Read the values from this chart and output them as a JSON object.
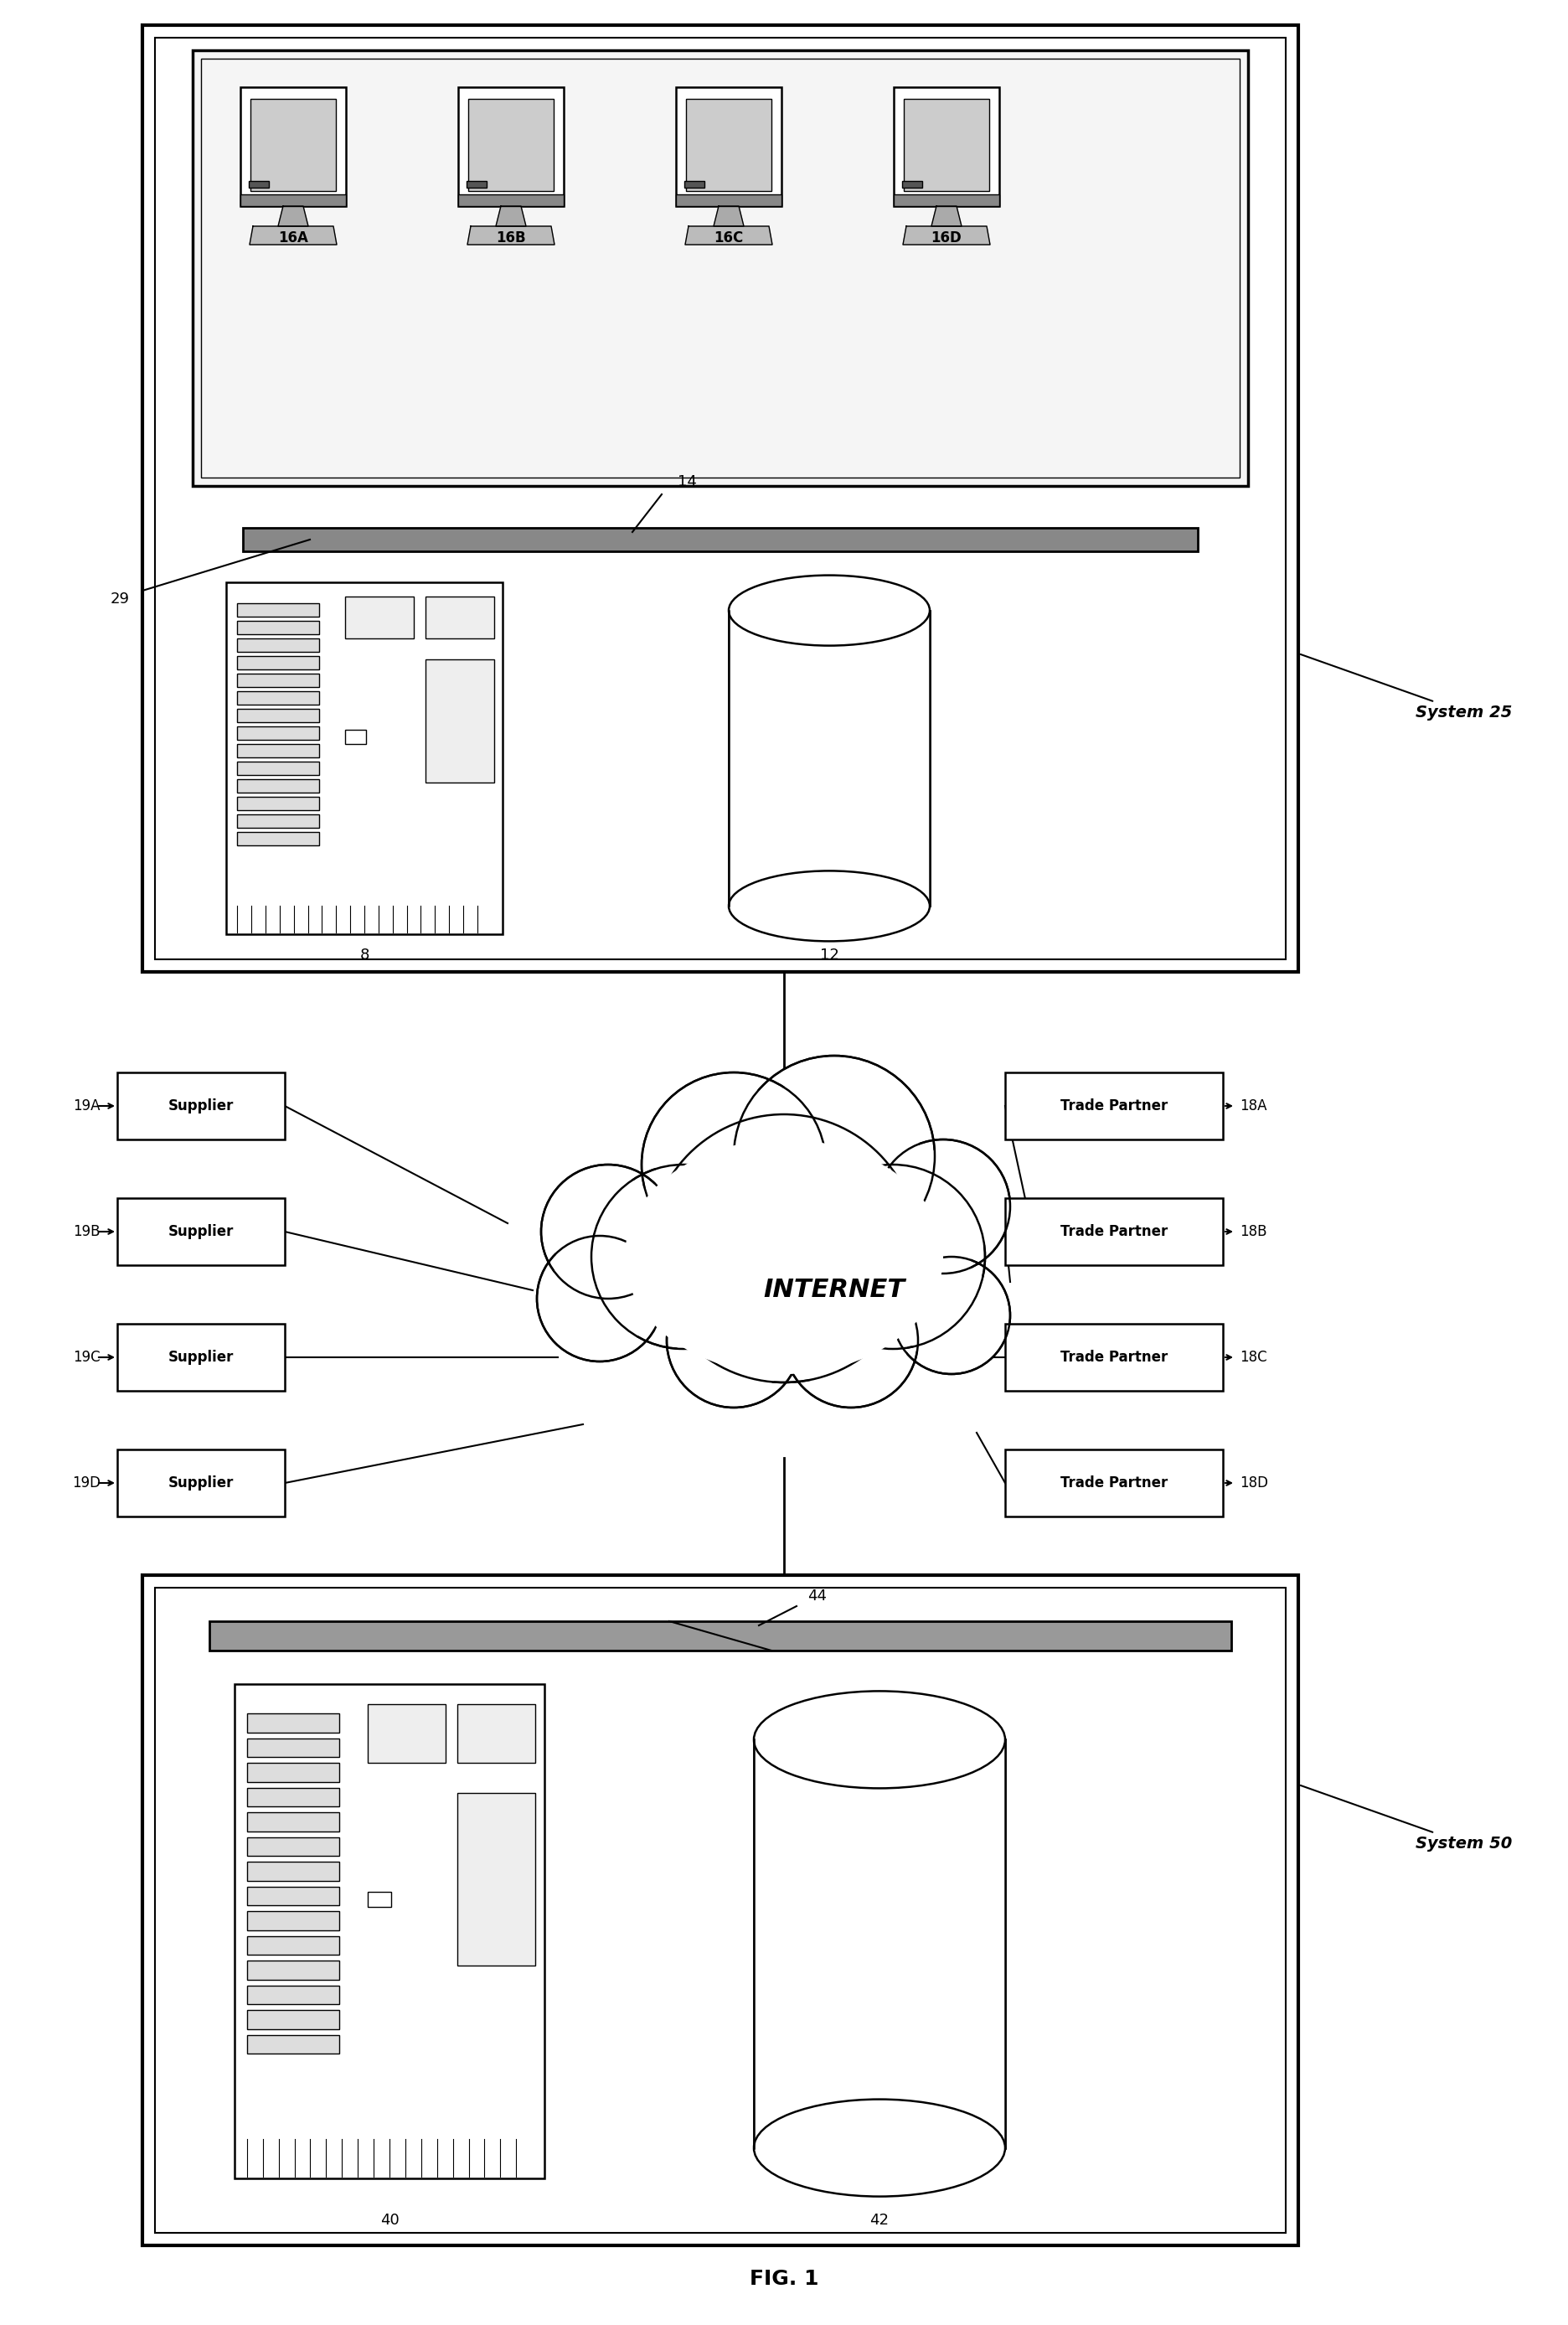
{
  "fig_label": "FIG. 1",
  "bg_color": "#ffffff",
  "system25_label": "System 25",
  "system50_label": "System 50",
  "internet_label": "INTERNET",
  "workstations": [
    "16A",
    "16B",
    "16C",
    "16D"
  ],
  "suppliers": [
    "Supplier",
    "Supplier",
    "Supplier",
    "Supplier"
  ],
  "supplier_labels": [
    "19A",
    "19B",
    "19C",
    "19D"
  ],
  "trade_partners": [
    "Trade Partner",
    "Trade Partner",
    "Trade Partner",
    "Trade Partner"
  ],
  "trade_partner_labels": [
    "18A",
    "18B",
    "18C",
    "18D"
  ],
  "lw_main": 1.8,
  "lw_thin": 1.0,
  "font_size": 12,
  "font_size_large": 18
}
